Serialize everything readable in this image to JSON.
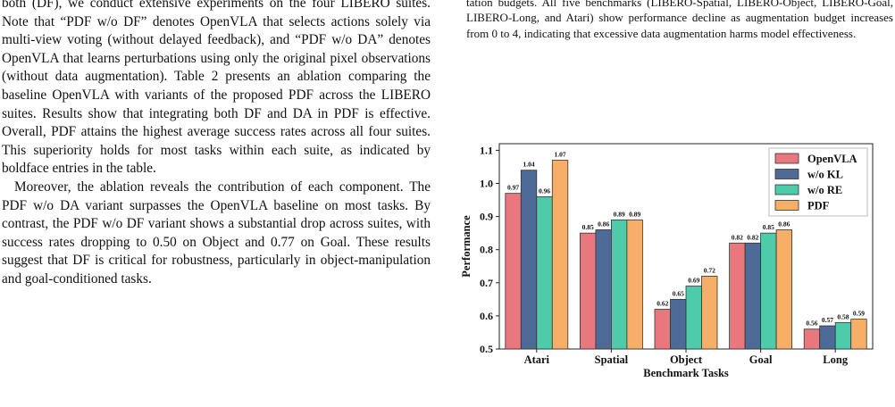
{
  "left_column": {
    "paragraphs": [
      "both (DF), we conduct extensive experiments on the four LIBERO suites. Note that “PDF w/o DF” denotes OpenVLA that selects actions solely via multi-view voting (without delayed feedback), and “PDF w/o DA” denotes OpenVLA that learns perturbations using only the original pixel observations (without data augmentation). Table 2 presents an ablation comparing the baseline OpenVLA with variants of the proposed PDF across the LIBERO suites. Results show that integrating both DF and DA in PDF is effective. Overall, PDF attains the highest average success rates across all four suites. This superiority holds for most tasks within each suite, as indicated by boldface entries in the table.",
      "Moreover, the ablation reveals the contribution of each component. The PDF w/o DA variant surpasses the OpenVLA baseline on most tasks. By contrast, the PDF w/o DF variant shows a substantial drop across suites, with success rates dropping to 0.50 on Object and 0.77 on Goal. These results suggest that DF is critical for robustness, particularly in object-manipulation and goal-conditioned tasks."
    ]
  },
  "right_column": {
    "paragraph": "tation budgets. All five benchmarks (LIBERO-Spatial, LIBERO-Object, LIBERO-Goal, LIBERO-Long, and Atari) show performance decline as augmentation budget increases from 0 to 4, indicating that excessive data augmentation harms model effectiveness."
  },
  "chart_data": {
    "type": "bar",
    "xlabel": "Benchmark Tasks",
    "ylabel": "Performance",
    "ylim": [
      0.5,
      1.12
    ],
    "yticks": [
      "0.5",
      "0.6",
      "0.7",
      "0.8",
      "0.9",
      "1.0",
      "1.1"
    ],
    "categories": [
      "Atari",
      "Spatial",
      "Object",
      "Goal",
      "Long"
    ],
    "legend_position": "top-right",
    "series": [
      {
        "name": "OpenVLA",
        "color": "#e8787d",
        "values": [
          0.97,
          0.85,
          0.62,
          0.82,
          0.56
        ],
        "labels": [
          "0.97",
          "0.85",
          "0.62",
          "0.82",
          "0.56"
        ]
      },
      {
        "name": "w/o KL",
        "color": "#4e6a96",
        "values": [
          1.04,
          0.86,
          0.65,
          0.82,
          0.57
        ],
        "labels": [
          "1.04",
          "0.86",
          "0.65",
          "0.82",
          "0.57"
        ]
      },
      {
        "name": "w/o RE",
        "color": "#4ecba8",
        "values": [
          0.96,
          0.89,
          0.69,
          0.85,
          0.58
        ],
        "labels": [
          "0.96",
          "0.89",
          "0.69",
          "0.85",
          "0.58"
        ]
      },
      {
        "name": "PDF",
        "color": "#f7ae66",
        "values": [
          1.07,
          0.89,
          0.72,
          0.86,
          0.59
        ],
        "labels": [
          "1.07",
          "0.89",
          "0.72",
          "0.86",
          "0.59"
        ]
      }
    ]
  }
}
